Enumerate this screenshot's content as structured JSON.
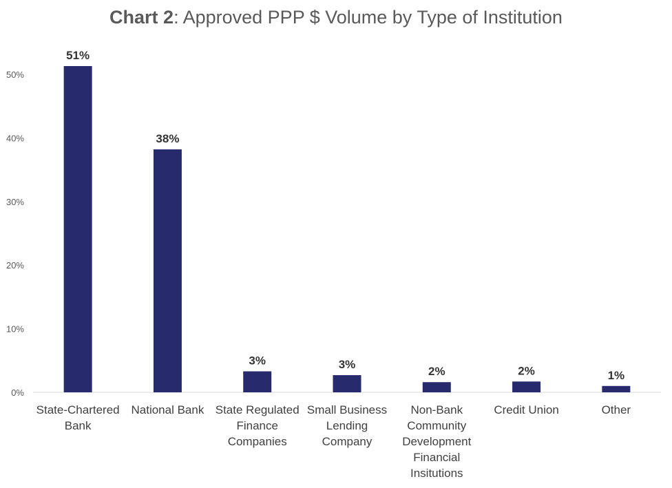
{
  "chart_data": {
    "type": "bar",
    "title_prefix": "Chart 2",
    "title_rest": ": Approved PPP $ Volume by Type of Institution",
    "categories": [
      [
        "State-Chartered",
        "Bank"
      ],
      [
        "National Bank"
      ],
      [
        "State Regulated",
        "Finance",
        "Companies"
      ],
      [
        "Small Business",
        "Lending",
        "Company"
      ],
      [
        "Non-Bank",
        "Community",
        "Development",
        "Financial",
        "Insitutions"
      ],
      [
        "Credit Union"
      ],
      [
        "Other"
      ]
    ],
    "values": [
      51.3,
      38.2,
      3.3,
      2.7,
      1.6,
      1.7,
      1.0
    ],
    "data_labels": [
      "51%",
      "38%",
      "3%",
      "3%",
      "2%",
      "2%",
      "1%"
    ],
    "yticks": [
      "0%",
      "10%",
      "20%",
      "30%",
      "40%",
      "50%"
    ],
    "ylim": [
      0,
      50
    ],
    "grid": false,
    "legend": "none",
    "bar_color": "#272A6C"
  }
}
